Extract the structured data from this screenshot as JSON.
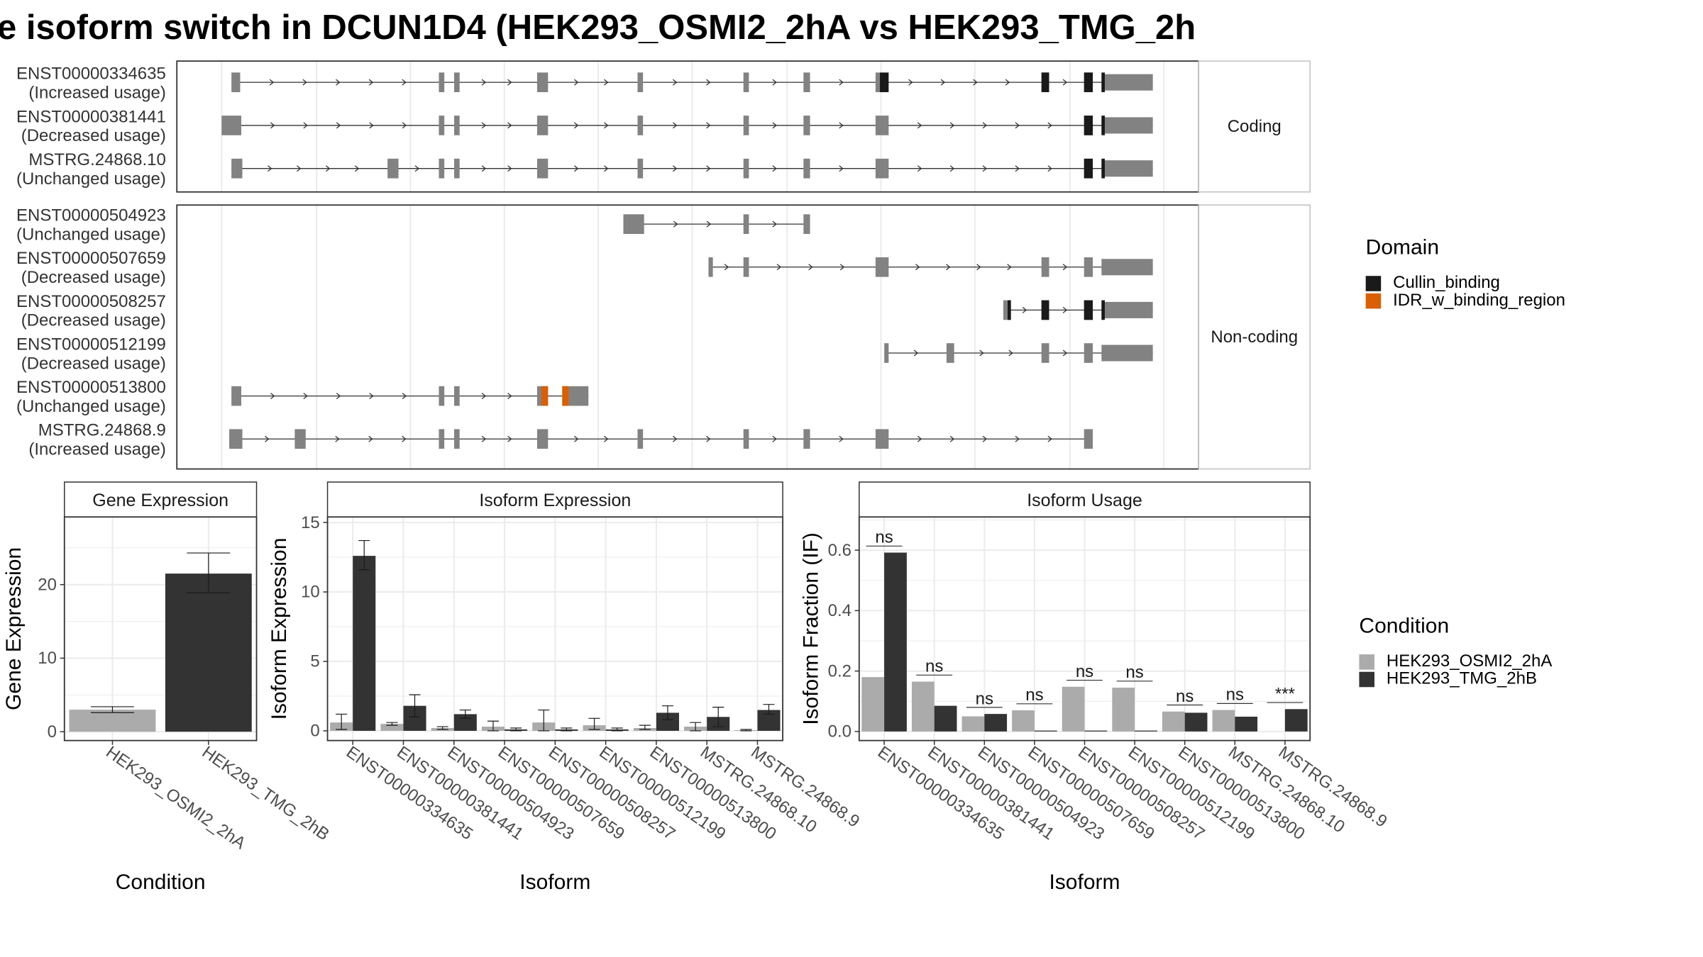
{
  "title": "e isoform switch in DCUN1D4 (HEK293_OSMI2_2hA vs HEK293_TMG_2h",
  "colors": {
    "exon": "#828282",
    "cullin": "#1a1a1a",
    "idr": "#d95f02",
    "condA": "#ababab",
    "condB": "#333333",
    "grid": "#ebebeb",
    "panel_border": "#333333",
    "strip_border": "#bfbfbf"
  },
  "structure": {
    "facets": [
      {
        "label": "Coding",
        "tracks": [
          {
            "id": "ENST00000334635",
            "usage": "(Increased usage)",
            "exons": [
              [
                212,
                220
              ],
              [
                402,
                407
              ],
              [
                416,
                421
              ],
              [
                492,
                502
              ],
              [
                584,
                589
              ],
              [
                681,
                686
              ],
              [
                736,
                742
              ],
              [
                802,
                806
              ],
              [
                954,
                961
              ],
              [
                993,
                1001
              ],
              [
                1009,
                1056
              ]
            ],
            "domains": [
              [
                "cullin",
                806,
                814
              ],
              [
                "cullin",
                954,
                961
              ],
              [
                "cullin",
                993,
                1001
              ],
              [
                "cullin",
                1009,
                1012
              ]
            ]
          },
          {
            "id": "ENST00000381441",
            "usage": "(Decreased usage)",
            "exons": [
              [
                203,
                221
              ],
              [
                402,
                407
              ],
              [
                416,
                421
              ],
              [
                492,
                502
              ],
              [
                584,
                589
              ],
              [
                681,
                686
              ],
              [
                736,
                742
              ],
              [
                802,
                814
              ],
              [
                993,
                1001
              ],
              [
                1009,
                1056
              ]
            ],
            "domains": [
              [
                "cullin",
                993,
                1001
              ],
              [
                "cullin",
                1009,
                1012
              ]
            ]
          },
          {
            "id": "MSTRG.24868.10",
            "usage": "(Unchanged usage)",
            "exons": [
              [
                212,
                222
              ],
              [
                355,
                365
              ],
              [
                402,
                407
              ],
              [
                416,
                421
              ],
              [
                492,
                502
              ],
              [
                584,
                589
              ],
              [
                681,
                686
              ],
              [
                736,
                742
              ],
              [
                802,
                814
              ],
              [
                993,
                1001
              ],
              [
                1009,
                1056
              ]
            ],
            "domains": [
              [
                "cullin",
                993,
                1001
              ],
              [
                "cullin",
                1009,
                1012
              ]
            ]
          }
        ]
      },
      {
        "label": "Non-coding",
        "tracks": [
          {
            "id": "ENST00000504923",
            "usage": "(Unchanged usage)",
            "exons": [
              [
                571,
                590
              ],
              [
                681,
                686
              ],
              [
                736,
                742
              ]
            ],
            "domains": []
          },
          {
            "id": "ENST00000507659",
            "usage": "(Decreased usage)",
            "exons": [
              [
                649,
                653
              ],
              [
                681,
                686
              ],
              [
                802,
                814
              ],
              [
                954,
                961
              ],
              [
                993,
                1001
              ],
              [
                1009,
                1056
              ]
            ],
            "domains": []
          },
          {
            "id": "ENST00000508257",
            "usage": "(Decreased usage)",
            "exons": [
              [
                919,
                926
              ],
              [
                954,
                961
              ],
              [
                993,
                1001
              ],
              [
                1009,
                1056
              ]
            ],
            "domains": [
              [
                "cullin",
                923,
                926
              ],
              [
                "cullin",
                954,
                961
              ],
              [
                "cullin",
                993,
                1001
              ],
              [
                "cullin",
                1009,
                1012
              ]
            ]
          },
          {
            "id": "ENST00000512199",
            "usage": "(Decreased usage)",
            "exons": [
              [
                810,
                814
              ],
              [
                867,
                874
              ],
              [
                954,
                961
              ],
              [
                993,
                1001
              ],
              [
                1009,
                1056
              ]
            ],
            "domains": []
          },
          {
            "id": "ENST00000513800",
            "usage": "(Unchanged usage)",
            "exons": [
              [
                212,
                221
              ],
              [
                402,
                407
              ],
              [
                416,
                421
              ],
              [
                492,
                502
              ],
              [
                515,
                521
              ],
              [
                521,
                539
              ]
            ],
            "domains": [
              [
                "idr",
                496,
                502
              ],
              [
                "idr",
                515,
                521
              ]
            ]
          },
          {
            "id": "MSTRG.24868.9",
            "usage": "(Increased usage)",
            "exons": [
              [
                210,
                222
              ],
              [
                270,
                280
              ],
              [
                402,
                407
              ],
              [
                416,
                421
              ],
              [
                492,
                502
              ],
              [
                584,
                589
              ],
              [
                681,
                686
              ],
              [
                736,
                742
              ],
              [
                802,
                814
              ],
              [
                993,
                1001
              ]
            ],
            "domains": []
          }
        ]
      }
    ]
  },
  "legends": {
    "domain": {
      "title": "Domain",
      "items": [
        {
          "label": "Cullin_binding",
          "key": "cullin"
        },
        {
          "label": "IDR_w_binding_region",
          "key": "idr"
        }
      ]
    },
    "condition": {
      "title": "Condition",
      "items": [
        {
          "label": "HEK293_OSMI2_2hA",
          "key": "condA"
        },
        {
          "label": "HEK293_TMG_2hB",
          "key": "condB"
        }
      ]
    }
  },
  "chart_data": [
    {
      "type": "bar",
      "panel_title": "Gene Expression",
      "xlabel": "Condition",
      "ylabel": "Gene Expression",
      "categories": [
        "HEK293_OSMI2_2hA",
        "HEK293_TMG_2hB"
      ],
      "values": [
        3.0,
        21.5
      ],
      "err_low": [
        2.6,
        18.9
      ],
      "err_high": [
        3.4,
        24.3
      ],
      "ylim": [
        -1.2,
        29.2
      ],
      "yticks": [
        0,
        10,
        20
      ]
    },
    {
      "type": "bar",
      "panel_title": "Isoform Expression",
      "xlabel": "Isoform",
      "ylabel": "Isoform Expression",
      "categories": [
        "ENST00000334635",
        "ENST00000381441",
        "ENST00000504923",
        "ENST00000507659",
        "ENST00000508257",
        "ENST00000512199",
        "ENST00000513800",
        "MSTRG.24868.10",
        "MSTRG.24868.9"
      ],
      "series": [
        {
          "name": "HEK293_OSMI2_2hA",
          "values": [
            0.6,
            0.5,
            0.2,
            0.3,
            0.6,
            0.4,
            0.2,
            0.3,
            0.05
          ],
          "err_low": [
            0.1,
            0.4,
            0.1,
            0.0,
            0.0,
            0.1,
            0.1,
            0.0,
            0.0
          ],
          "err_high": [
            1.2,
            0.6,
            0.3,
            0.7,
            1.5,
            0.9,
            0.4,
            0.6,
            0.1
          ]
        },
        {
          "name": "HEK293_TMG_2hB",
          "values": [
            12.6,
            1.8,
            1.2,
            0.1,
            0.1,
            0.1,
            1.3,
            1.0,
            1.5
          ],
          "err_low": [
            11.6,
            1.0,
            0.9,
            0.0,
            0.0,
            0.0,
            0.8,
            0.3,
            1.2
          ],
          "err_high": [
            13.7,
            2.6,
            1.5,
            0.2,
            0.2,
            0.2,
            1.8,
            1.7,
            1.9
          ]
        }
      ],
      "ylim": [
        -0.7,
        15.4
      ],
      "yticks": [
        0,
        5,
        10,
        15
      ]
    },
    {
      "type": "bar",
      "panel_title": "Isoform Usage",
      "xlabel": "Isoform",
      "ylabel": "Isoform Fraction (IF)",
      "categories": [
        "ENST00000334635",
        "ENST00000381441",
        "ENST00000504923",
        "ENST00000507659",
        "ENST00000508257",
        "ENST00000512199",
        "ENST00000513800",
        "MSTRG.24868.10",
        "MSTRG.24868.9"
      ],
      "series": [
        {
          "name": "HEK293_OSMI2_2hA",
          "values": [
            0.18,
            0.165,
            0.05,
            0.07,
            0.148,
            0.145,
            0.066,
            0.071,
            0.0
          ]
        },
        {
          "name": "HEK293_TMG_2hB",
          "values": [
            0.592,
            0.085,
            0.058,
            0.003,
            0.003,
            0.003,
            0.062,
            0.049,
            0.074
          ]
        }
      ],
      "significance": [
        "ns",
        "ns",
        "ns",
        "ns",
        "ns",
        "ns",
        "ns",
        "ns",
        "***"
      ],
      "ylim": [
        -0.03,
        0.71
      ],
      "yticks": [
        0.0,
        0.2,
        0.4,
        0.6
      ]
    }
  ]
}
